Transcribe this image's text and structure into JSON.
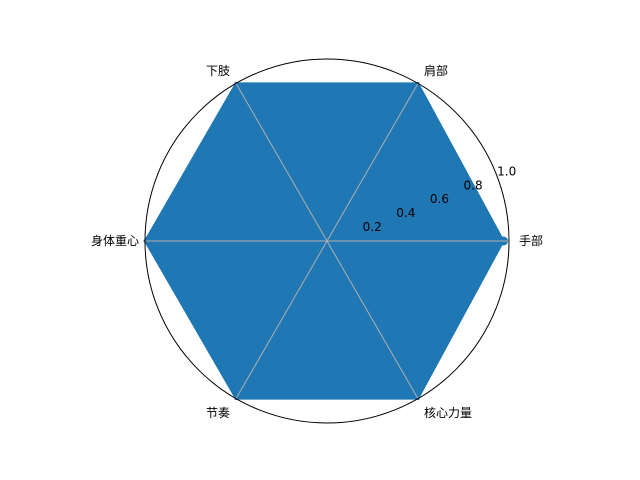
{
  "chart_data": {
    "type": "radar",
    "categories": [
      "手部",
      "肩部",
      "下肢",
      "身体重心",
      "节奏",
      "核心力量"
    ],
    "series": [
      {
        "values": [
          0.97,
          1.0,
          1.0,
          1.0,
          1.0,
          1.0
        ]
      }
    ],
    "rlim": [
      0,
      1.0
    ],
    "radial_ticks": [
      0.2,
      0.4,
      0.6,
      0.8,
      1.0
    ],
    "radial_tick_labels": [
      "0.2",
      "0.4",
      "0.6",
      "0.8",
      "1.0"
    ],
    "fill_color": "#1f77b4",
    "grid_color": "#b0b0b0",
    "grid": true
  }
}
